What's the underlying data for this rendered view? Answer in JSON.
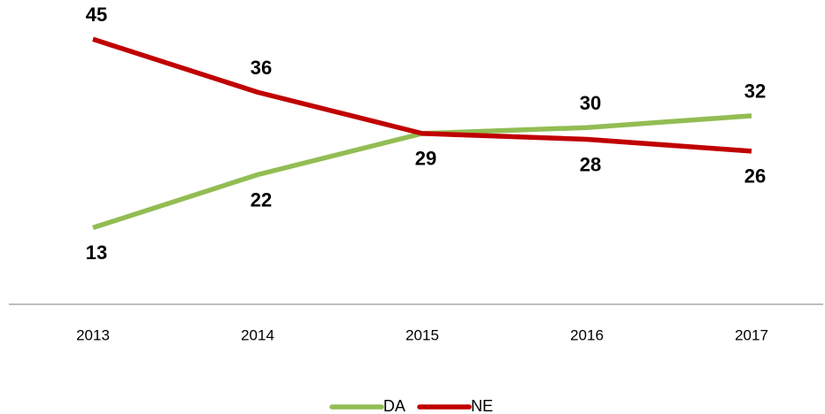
{
  "chart_data": {
    "type": "line",
    "categories": [
      "2013",
      "2014",
      "2015",
      "2016",
      "2017"
    ],
    "series": [
      {
        "name": "DA",
        "color": "#92bd53",
        "values": [
          13,
          22,
          29,
          30,
          32
        ]
      },
      {
        "name": "NE",
        "color": "#c00000",
        "values": [
          45,
          36,
          29,
          28,
          26
        ]
      }
    ],
    "ylim": [
      0,
      50
    ],
    "legend": "bottom"
  }
}
